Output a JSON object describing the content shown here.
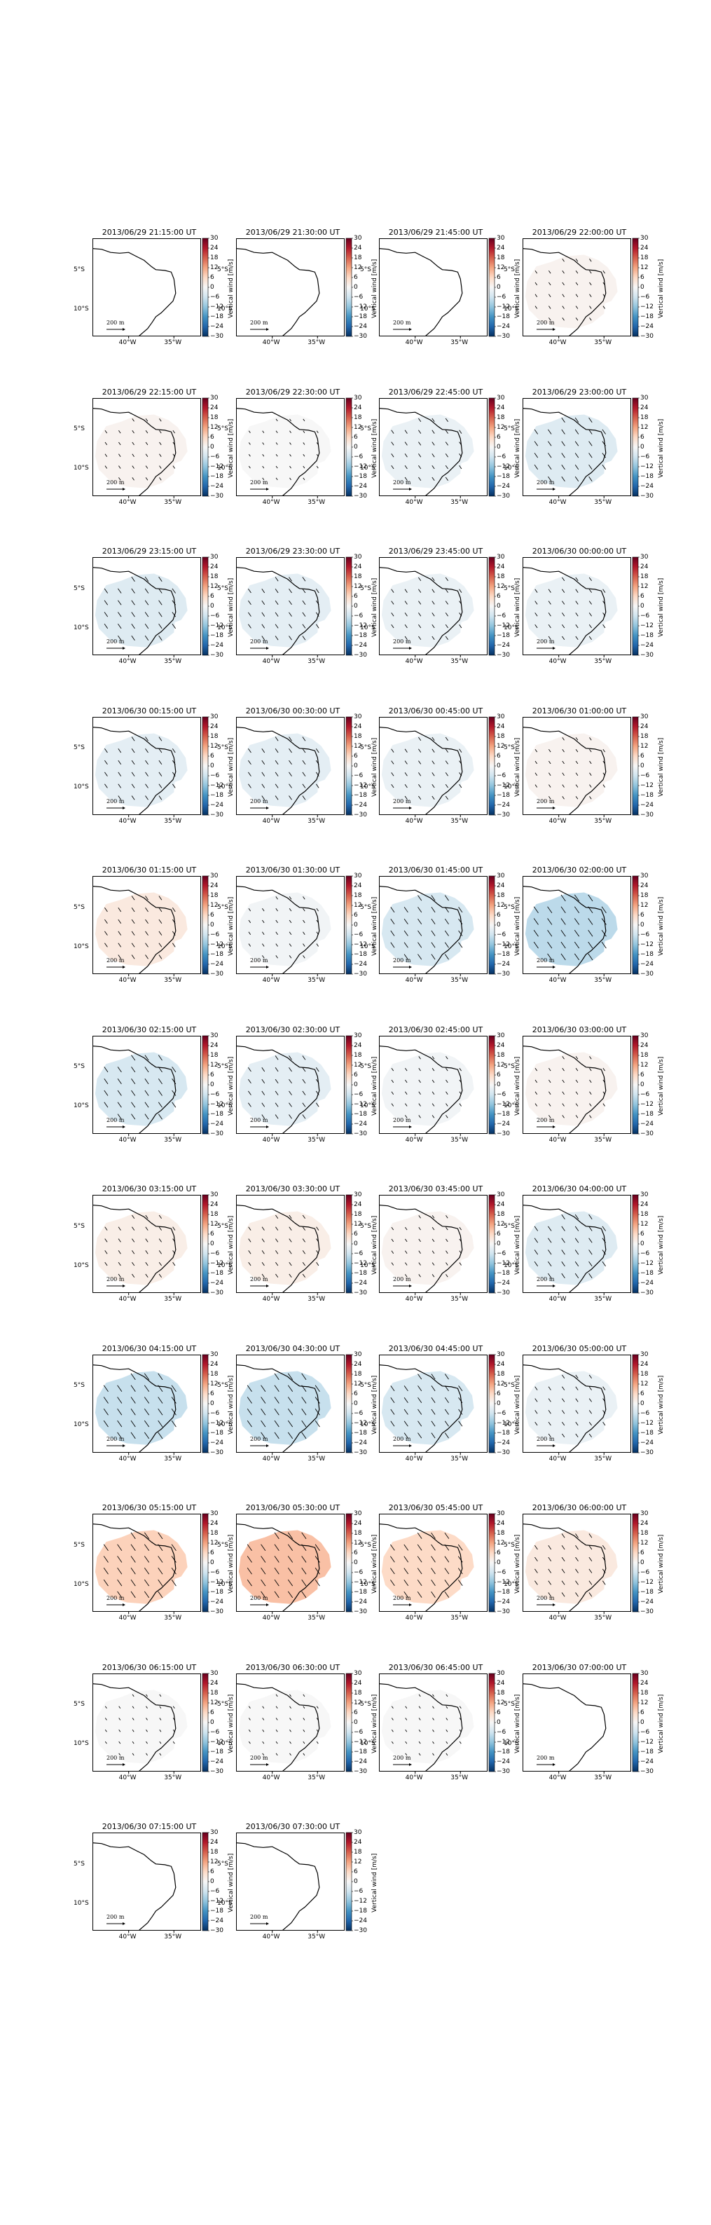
{
  "figure": {
    "colorbar": {
      "label": "Vertical wind [m/s]",
      "ticks": [
        "30",
        "24",
        "18",
        "12",
        "6",
        "0",
        "−6",
        "−12",
        "−18",
        "−24",
        "−30"
      ],
      "range": [
        -30,
        30
      ],
      "colormap": "RdBu_r",
      "colors": [
        "#053061",
        "#2166ac",
        "#4393c3",
        "#92c5de",
        "#d1e5f0",
        "#f7f7f7",
        "#fddbc7",
        "#f4a582",
        "#d6604d",
        "#b2182b",
        "#67001f"
      ]
    },
    "axes": {
      "x_ticks": [
        "40°W",
        "35°W"
      ],
      "y_ticks": [
        "5°S",
        "10°S"
      ],
      "lon_range": [
        -44,
        -32
      ],
      "lat_range": [
        -13.5,
        -1
      ]
    },
    "quiver_key": "200 m",
    "panels": [
      {
        "title": "2013/06/29 21:15:00 UT",
        "w": 0,
        "arrows": false,
        "shaded": false
      },
      {
        "title": "2013/06/29 21:30:00 UT",
        "w": 0,
        "arrows": false,
        "shaded": false
      },
      {
        "title": "2013/06/29 21:45:00 UT",
        "w": 0,
        "arrows": false,
        "shaded": false
      },
      {
        "title": "2013/06/29 22:00:00 UT",
        "w": 1,
        "arrows": true,
        "shaded": true
      },
      {
        "title": "2013/06/29 22:15:00 UT",
        "w": 1,
        "arrows": true,
        "shaded": true
      },
      {
        "title": "2013/06/29 22:30:00 UT",
        "w": 0,
        "arrows": true,
        "shaded": true
      },
      {
        "title": "2013/06/29 22:45:00 UT",
        "w": -2,
        "arrows": true,
        "shaded": true
      },
      {
        "title": "2013/06/29 23:00:00 UT",
        "w": -4,
        "arrows": true,
        "shaded": true
      },
      {
        "title": "2013/06/29 23:15:00 UT",
        "w": -4,
        "arrows": true,
        "shaded": true
      },
      {
        "title": "2013/06/29 23:30:00 UT",
        "w": -3,
        "arrows": true,
        "shaded": true
      },
      {
        "title": "2013/06/29 23:45:00 UT",
        "w": -2,
        "arrows": true,
        "shaded": true
      },
      {
        "title": "2013/06/30 00:00:00 UT",
        "w": -2,
        "arrows": true,
        "shaded": true
      },
      {
        "title": "2013/06/30 00:15:00 UT",
        "w": -3,
        "arrows": true,
        "shaded": true
      },
      {
        "title": "2013/06/30 00:30:00 UT",
        "w": -3,
        "arrows": true,
        "shaded": true
      },
      {
        "title": "2013/06/30 00:45:00 UT",
        "w": -2,
        "arrows": true,
        "shaded": true
      },
      {
        "title": "2013/06/30 01:00:00 UT",
        "w": 1,
        "arrows": true,
        "shaded": true
      },
      {
        "title": "2013/06/30 01:15:00 UT",
        "w": 3,
        "arrows": true,
        "shaded": true
      },
      {
        "title": "2013/06/30 01:30:00 UT",
        "w": -1,
        "arrows": true,
        "shaded": true
      },
      {
        "title": "2013/06/30 01:45:00 UT",
        "w": -5,
        "arrows": true,
        "shaded": true
      },
      {
        "title": "2013/06/30 02:00:00 UT",
        "w": -8,
        "arrows": true,
        "shaded": true
      },
      {
        "title": "2013/06/30 02:15:00 UT",
        "w": -5,
        "arrows": true,
        "shaded": true
      },
      {
        "title": "2013/06/30 02:30:00 UT",
        "w": -3,
        "arrows": true,
        "shaded": true
      },
      {
        "title": "2013/06/30 02:45:00 UT",
        "w": -1,
        "arrows": true,
        "shaded": true
      },
      {
        "title": "2013/06/30 03:00:00 UT",
        "w": 1,
        "arrows": true,
        "shaded": true
      },
      {
        "title": "2013/06/30 03:15:00 UT",
        "w": 2,
        "arrows": true,
        "shaded": true
      },
      {
        "title": "2013/06/30 03:30:00 UT",
        "w": 2,
        "arrows": true,
        "shaded": true
      },
      {
        "title": "2013/06/30 03:45:00 UT",
        "w": 1,
        "arrows": true,
        "shaded": true
      },
      {
        "title": "2013/06/30 04:00:00 UT",
        "w": -4,
        "arrows": true,
        "shaded": true
      },
      {
        "title": "2013/06/30 04:15:00 UT",
        "w": -7,
        "arrows": true,
        "shaded": true
      },
      {
        "title": "2013/06/30 04:30:00 UT",
        "w": -7,
        "arrows": true,
        "shaded": true
      },
      {
        "title": "2013/06/30 04:45:00 UT",
        "w": -5,
        "arrows": true,
        "shaded": true
      },
      {
        "title": "2013/06/30 05:00:00 UT",
        "w": -2,
        "arrows": true,
        "shaded": true
      },
      {
        "title": "2013/06/30 05:15:00 UT",
        "w": 7,
        "arrows": true,
        "shaded": true
      },
      {
        "title": "2013/06/30 05:30:00 UT",
        "w": 9,
        "arrows": true,
        "shaded": true
      },
      {
        "title": "2013/06/30 05:45:00 UT",
        "w": 6,
        "arrows": true,
        "shaded": true
      },
      {
        "title": "2013/06/30 06:00:00 UT",
        "w": 3,
        "arrows": true,
        "shaded": true
      },
      {
        "title": "2013/06/30 06:15:00 UT",
        "w": 0,
        "arrows": true,
        "shaded": true
      },
      {
        "title": "2013/06/30 06:30:00 UT",
        "w": 0,
        "arrows": true,
        "shaded": true
      },
      {
        "title": "2013/06/30 06:45:00 UT",
        "w": 0,
        "arrows": true,
        "shaded": true
      },
      {
        "title": "2013/06/30 07:00:00 UT",
        "w": 0,
        "arrows": false,
        "shaded": false
      },
      {
        "title": "2013/06/30 07:15:00 UT",
        "w": 0,
        "arrows": false,
        "shaded": false
      },
      {
        "title": "2013/06/30 07:30:00 UT",
        "w": 0,
        "arrows": false,
        "shaded": false
      }
    ]
  }
}
